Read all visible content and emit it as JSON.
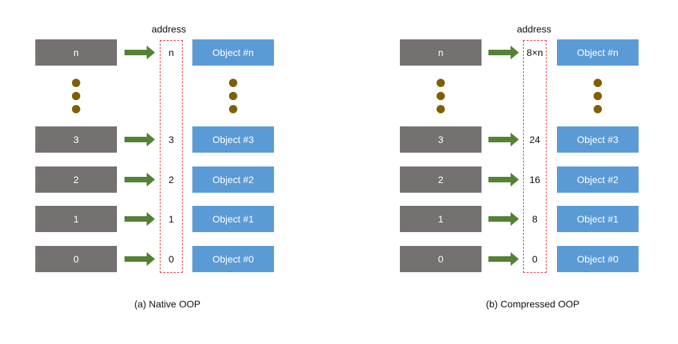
{
  "native": {
    "address_header": "address",
    "rows": [
      {
        "index": "n",
        "address": "n",
        "object": "Object #n"
      },
      {
        "index": "3",
        "address": "3",
        "object": "Object #3"
      },
      {
        "index": "2",
        "address": "2",
        "object": "Object #2"
      },
      {
        "index": "1",
        "address": "1",
        "object": "Object #1"
      },
      {
        "index": "0",
        "address": "0",
        "object": "Object #0"
      }
    ],
    "caption": "(a) Native OOP"
  },
  "compressed": {
    "address_header": "address",
    "rows": [
      {
        "index": "n",
        "address": "8×n",
        "object": "Object #n"
      },
      {
        "index": "3",
        "address": "24",
        "object": "Object #3"
      },
      {
        "index": "2",
        "address": "16",
        "object": "Object #2"
      },
      {
        "index": "1",
        "address": "8",
        "object": "Object #1"
      },
      {
        "index": "0",
        "address": "0",
        "object": "Object #0"
      }
    ],
    "caption": "(b) Compressed OOP"
  },
  "colors": {
    "index_box": "#767171",
    "object_box": "#5b9bd5",
    "arrow": "#548235",
    "dots": "#7f6000",
    "address_border": "#e0303a"
  }
}
